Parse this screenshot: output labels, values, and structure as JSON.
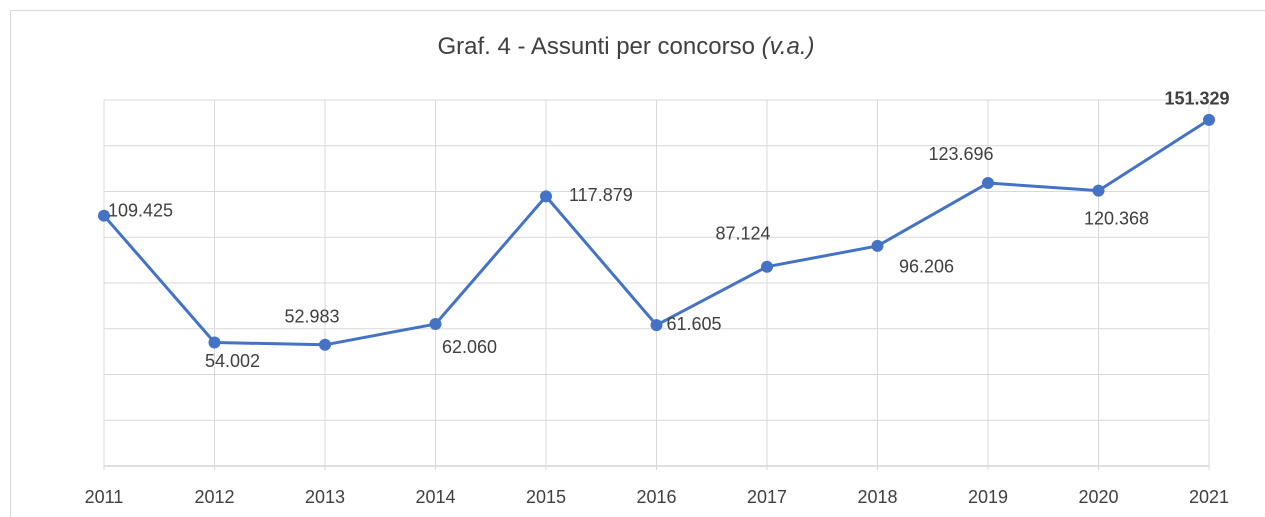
{
  "chart_data": {
    "type": "line",
    "title": "Graf. 4 - Assunti per concorso",
    "title_suffix": "(v.a.)",
    "categories": [
      "2011",
      "2012",
      "2013",
      "2014",
      "2015",
      "2016",
      "2017",
      "2018",
      "2019",
      "2020",
      "2021"
    ],
    "values": [
      109425,
      54002,
      52983,
      62060,
      117879,
      61605,
      87124,
      96206,
      123696,
      120368,
      151329
    ],
    "value_labels": [
      "109.425",
      "54.002",
      "52.983",
      "62.060",
      "117.879",
      "61.605",
      "87.124",
      "96.206",
      "123.696",
      "120.368",
      "151.329"
    ],
    "color": "#4472c4",
    "ylim": [
      0,
      160000
    ],
    "yticks": [
      0,
      20000,
      40000,
      60000,
      80000,
      100000,
      120000,
      140000,
      160000
    ],
    "grid": true
  }
}
